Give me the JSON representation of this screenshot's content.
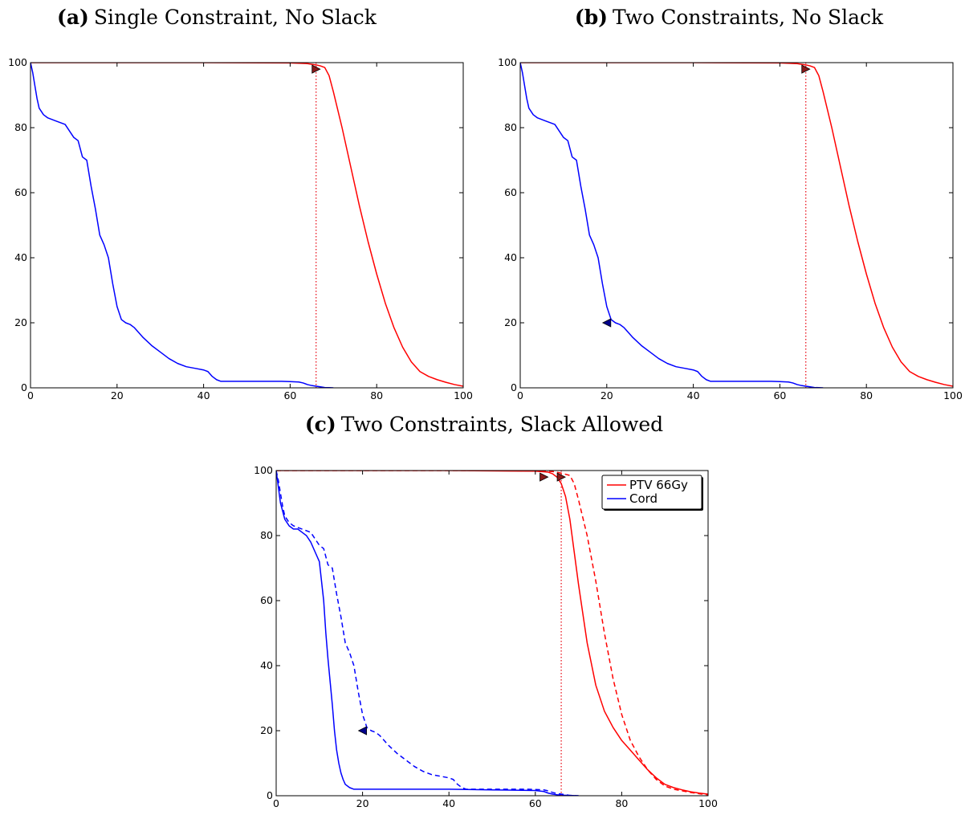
{
  "chart_data": [
    {
      "type": "line",
      "panel_label": "(a)",
      "title": "Single Constraint, No Slack",
      "xlim": [
        0,
        100
      ],
      "ylim": [
        0,
        100
      ],
      "xticks": [
        0,
        20,
        40,
        60,
        80,
        100
      ],
      "yticks": [
        0,
        20,
        40,
        60,
        80,
        100
      ],
      "xlabel": "",
      "ylabel": "",
      "grid": false,
      "vline": {
        "x": 66,
        "color": "#e8000b",
        "style": "dotted"
      },
      "series": [
        {
          "color": "#ff0000",
          "style": "solid",
          "x": [
            0,
            20,
            40,
            60,
            64,
            66,
            67,
            68,
            69,
            70,
            72,
            74,
            76,
            78,
            80,
            82,
            84,
            86,
            88,
            90,
            92,
            94,
            96,
            98,
            100
          ],
          "y": [
            100,
            100,
            100,
            99.9,
            99.7,
            99.3,
            99,
            98.5,
            96,
            91,
            80,
            68,
            56,
            45,
            35,
            26,
            18.5,
            12.5,
            8,
            5,
            3.5,
            2.5,
            1.7,
            1,
            0.5
          ]
        },
        {
          "color": "#0000ff",
          "style": "solid",
          "x": [
            0,
            0.5,
            1,
            1.5,
            2,
            3,
            4,
            6,
            8,
            10,
            11,
            12,
            13,
            14,
            15,
            16,
            17,
            18,
            19,
            20,
            21,
            22,
            23,
            24,
            25,
            26,
            28,
            30,
            32,
            34,
            36,
            38,
            40,
            41,
            42,
            43,
            44,
            46,
            50,
            55,
            58,
            60,
            62,
            63,
            64,
            65,
            66,
            67,
            68,
            69,
            70
          ],
          "y": [
            100,
            97,
            93,
            89,
            86,
            84,
            83,
            82,
            81,
            77,
            76,
            71,
            70,
            62,
            55,
            47,
            44,
            40,
            32,
            25,
            21,
            20,
            19.5,
            18.5,
            17,
            15.5,
            13,
            11,
            9,
            7.5,
            6.5,
            6,
            5.5,
            5,
            3.5,
            2.5,
            2,
            2,
            2,
            2,
            2,
            1.9,
            1.8,
            1.5,
            1,
            0.7,
            0.5,
            0.3,
            0.1,
            0.05,
            0
          ]
        }
      ],
      "markers": [
        {
          "x": 66,
          "y": 98,
          "direction": "right",
          "color": "#8b1a1a"
        }
      ]
    },
    {
      "type": "line",
      "panel_label": "(b)",
      "title": "Two Constraints, No Slack",
      "xlim": [
        0,
        100
      ],
      "ylim": [
        0,
        100
      ],
      "xticks": [
        0,
        20,
        40,
        60,
        80,
        100
      ],
      "yticks": [
        0,
        20,
        40,
        60,
        80,
        100
      ],
      "xlabel": "",
      "ylabel": "",
      "grid": false,
      "vline": {
        "x": 66,
        "color": "#e8000b",
        "style": "dotted"
      },
      "series": [
        {
          "color": "#ff0000",
          "style": "solid",
          "x": [
            0,
            20,
            40,
            60,
            64,
            66,
            67,
            68,
            69,
            70,
            72,
            74,
            76,
            78,
            80,
            82,
            84,
            86,
            88,
            90,
            92,
            94,
            96,
            98,
            100
          ],
          "y": [
            100,
            100,
            100,
            99.9,
            99.7,
            99.3,
            99,
            98.5,
            96,
            91,
            80,
            68,
            56,
            45,
            35,
            26,
            18.5,
            12.5,
            8,
            5,
            3.5,
            2.5,
            1.7,
            1,
            0.5
          ]
        },
        {
          "color": "#0000ff",
          "style": "solid",
          "x": [
            0,
            0.5,
            1,
            1.5,
            2,
            3,
            4,
            6,
            8,
            10,
            11,
            12,
            13,
            14,
            15,
            16,
            17,
            18,
            19,
            20,
            21,
            22,
            23,
            24,
            25,
            26,
            28,
            30,
            32,
            34,
            36,
            38,
            40,
            41,
            42,
            43,
            44,
            46,
            50,
            55,
            58,
            60,
            62,
            63,
            64,
            65,
            66,
            67,
            68,
            69,
            70
          ],
          "y": [
            100,
            97,
            93,
            89,
            86,
            84,
            83,
            82,
            81,
            77,
            76,
            71,
            70,
            62,
            55,
            47,
            44,
            40,
            32,
            25,
            21,
            20,
            19.5,
            18.5,
            17,
            15.5,
            13,
            11,
            9,
            7.5,
            6.5,
            6,
            5.5,
            5,
            3.5,
            2.5,
            2,
            2,
            2,
            2,
            2,
            1.9,
            1.8,
            1.5,
            1,
            0.7,
            0.5,
            0.3,
            0.1,
            0.05,
            0
          ]
        }
      ],
      "markers": [
        {
          "x": 66,
          "y": 98,
          "direction": "right",
          "color": "#8b1a1a"
        },
        {
          "x": 20,
          "y": 20,
          "direction": "left",
          "color": "#00008b"
        }
      ]
    },
    {
      "type": "line",
      "panel_label": "(c)",
      "title": "Two Constraints, Slack Allowed",
      "xlim": [
        0,
        100
      ],
      "ylim": [
        0,
        100
      ],
      "xticks": [
        0,
        20,
        40,
        60,
        80,
        100
      ],
      "yticks": [
        0,
        20,
        40,
        60,
        80,
        100
      ],
      "xlabel": "",
      "ylabel": "",
      "grid": false,
      "legend": "top-right",
      "vline": {
        "x": 66,
        "color": "#e8000b",
        "style": "dotted"
      },
      "series": [
        {
          "name": "PTV 66Gy",
          "color": "#ff0000",
          "style": "solid",
          "x": [
            0,
            20,
            40,
            60,
            63,
            64,
            65,
            66,
            67,
            68,
            69,
            70,
            72,
            74,
            76,
            78,
            80,
            82,
            84,
            86,
            88,
            90,
            92,
            94,
            96,
            98,
            100
          ],
          "y": [
            100,
            100,
            100,
            99.8,
            99.5,
            99,
            98,
            96,
            92,
            85,
            75,
            65,
            47,
            34,
            26,
            21,
            17,
            14,
            11,
            8,
            5.5,
            3.5,
            2.5,
            1.8,
            1.2,
            0.8,
            0.5
          ]
        },
        {
          "name": "Cord",
          "color": "#0000ff",
          "style": "solid",
          "x": [
            0,
            0.5,
            1,
            2,
            3,
            4,
            5,
            6,
            7,
            8,
            9,
            10,
            11,
            11.5,
            12,
            12.5,
            13,
            13.5,
            14,
            14.5,
            15,
            15.5,
            16,
            17,
            18,
            20,
            30,
            40,
            50,
            60,
            62,
            63,
            64,
            65,
            66,
            68,
            70
          ],
          "y": [
            100,
            95,
            90,
            85,
            83,
            82,
            82,
            81,
            80,
            78,
            75,
            72,
            60,
            50,
            42,
            35,
            28,
            20,
            14,
            10,
            7,
            5,
            3.5,
            2.5,
            2,
            2,
            2,
            2,
            1.8,
            1.6,
            1.3,
            0.8,
            0.5,
            0.3,
            0.2,
            0.1,
            0
          ]
        },
        {
          "color": "#ff0000",
          "style": "dashed",
          "x": [
            0,
            20,
            40,
            60,
            64,
            66,
            68,
            69,
            70,
            72,
            74,
            76,
            78,
            80,
            82,
            84,
            86,
            88,
            90,
            92,
            94,
            96,
            98,
            100
          ],
          "y": [
            100,
            100,
            100,
            99.9,
            99.7,
            99.2,
            98.5,
            96,
            91,
            80,
            66,
            50,
            36,
            25,
            17,
            12,
            8,
            5,
            3,
            2,
            1.5,
            1,
            0.6,
            0.3
          ]
        },
        {
          "color": "#0000ff",
          "style": "dashed",
          "x": [
            0,
            0.5,
            1,
            1.5,
            2,
            3,
            4,
            6,
            8,
            10,
            11,
            12,
            13,
            14,
            15,
            16,
            17,
            18,
            19,
            20,
            21,
            22,
            23,
            24,
            25,
            26,
            28,
            30,
            32,
            34,
            36,
            38,
            40,
            41,
            42,
            43,
            44,
            46,
            50,
            55,
            58,
            60,
            62,
            63,
            64,
            65,
            66,
            67,
            68,
            69,
            70
          ],
          "y": [
            100,
            97,
            93,
            89,
            86,
            84,
            83,
            82,
            81,
            77,
            76,
            71,
            70,
            62,
            55,
            47,
            44,
            40,
            32,
            25,
            21,
            20,
            19.5,
            18.5,
            17,
            15.5,
            13,
            11,
            9,
            7.5,
            6.5,
            6,
            5.5,
            5,
            3.5,
            2.5,
            2,
            2,
            2,
            2,
            2,
            1.9,
            1.8,
            1.5,
            1,
            0.7,
            0.5,
            0.3,
            0.1,
            0.05,
            0
          ]
        }
      ],
      "markers": [
        {
          "x": 62,
          "y": 98,
          "direction": "right",
          "color": "#8b1a1a"
        },
        {
          "x": 66,
          "y": 98,
          "direction": "right",
          "color": "#8b1a1a"
        },
        {
          "x": 20,
          "y": 20,
          "direction": "left",
          "color": "#00008b"
        }
      ]
    }
  ]
}
